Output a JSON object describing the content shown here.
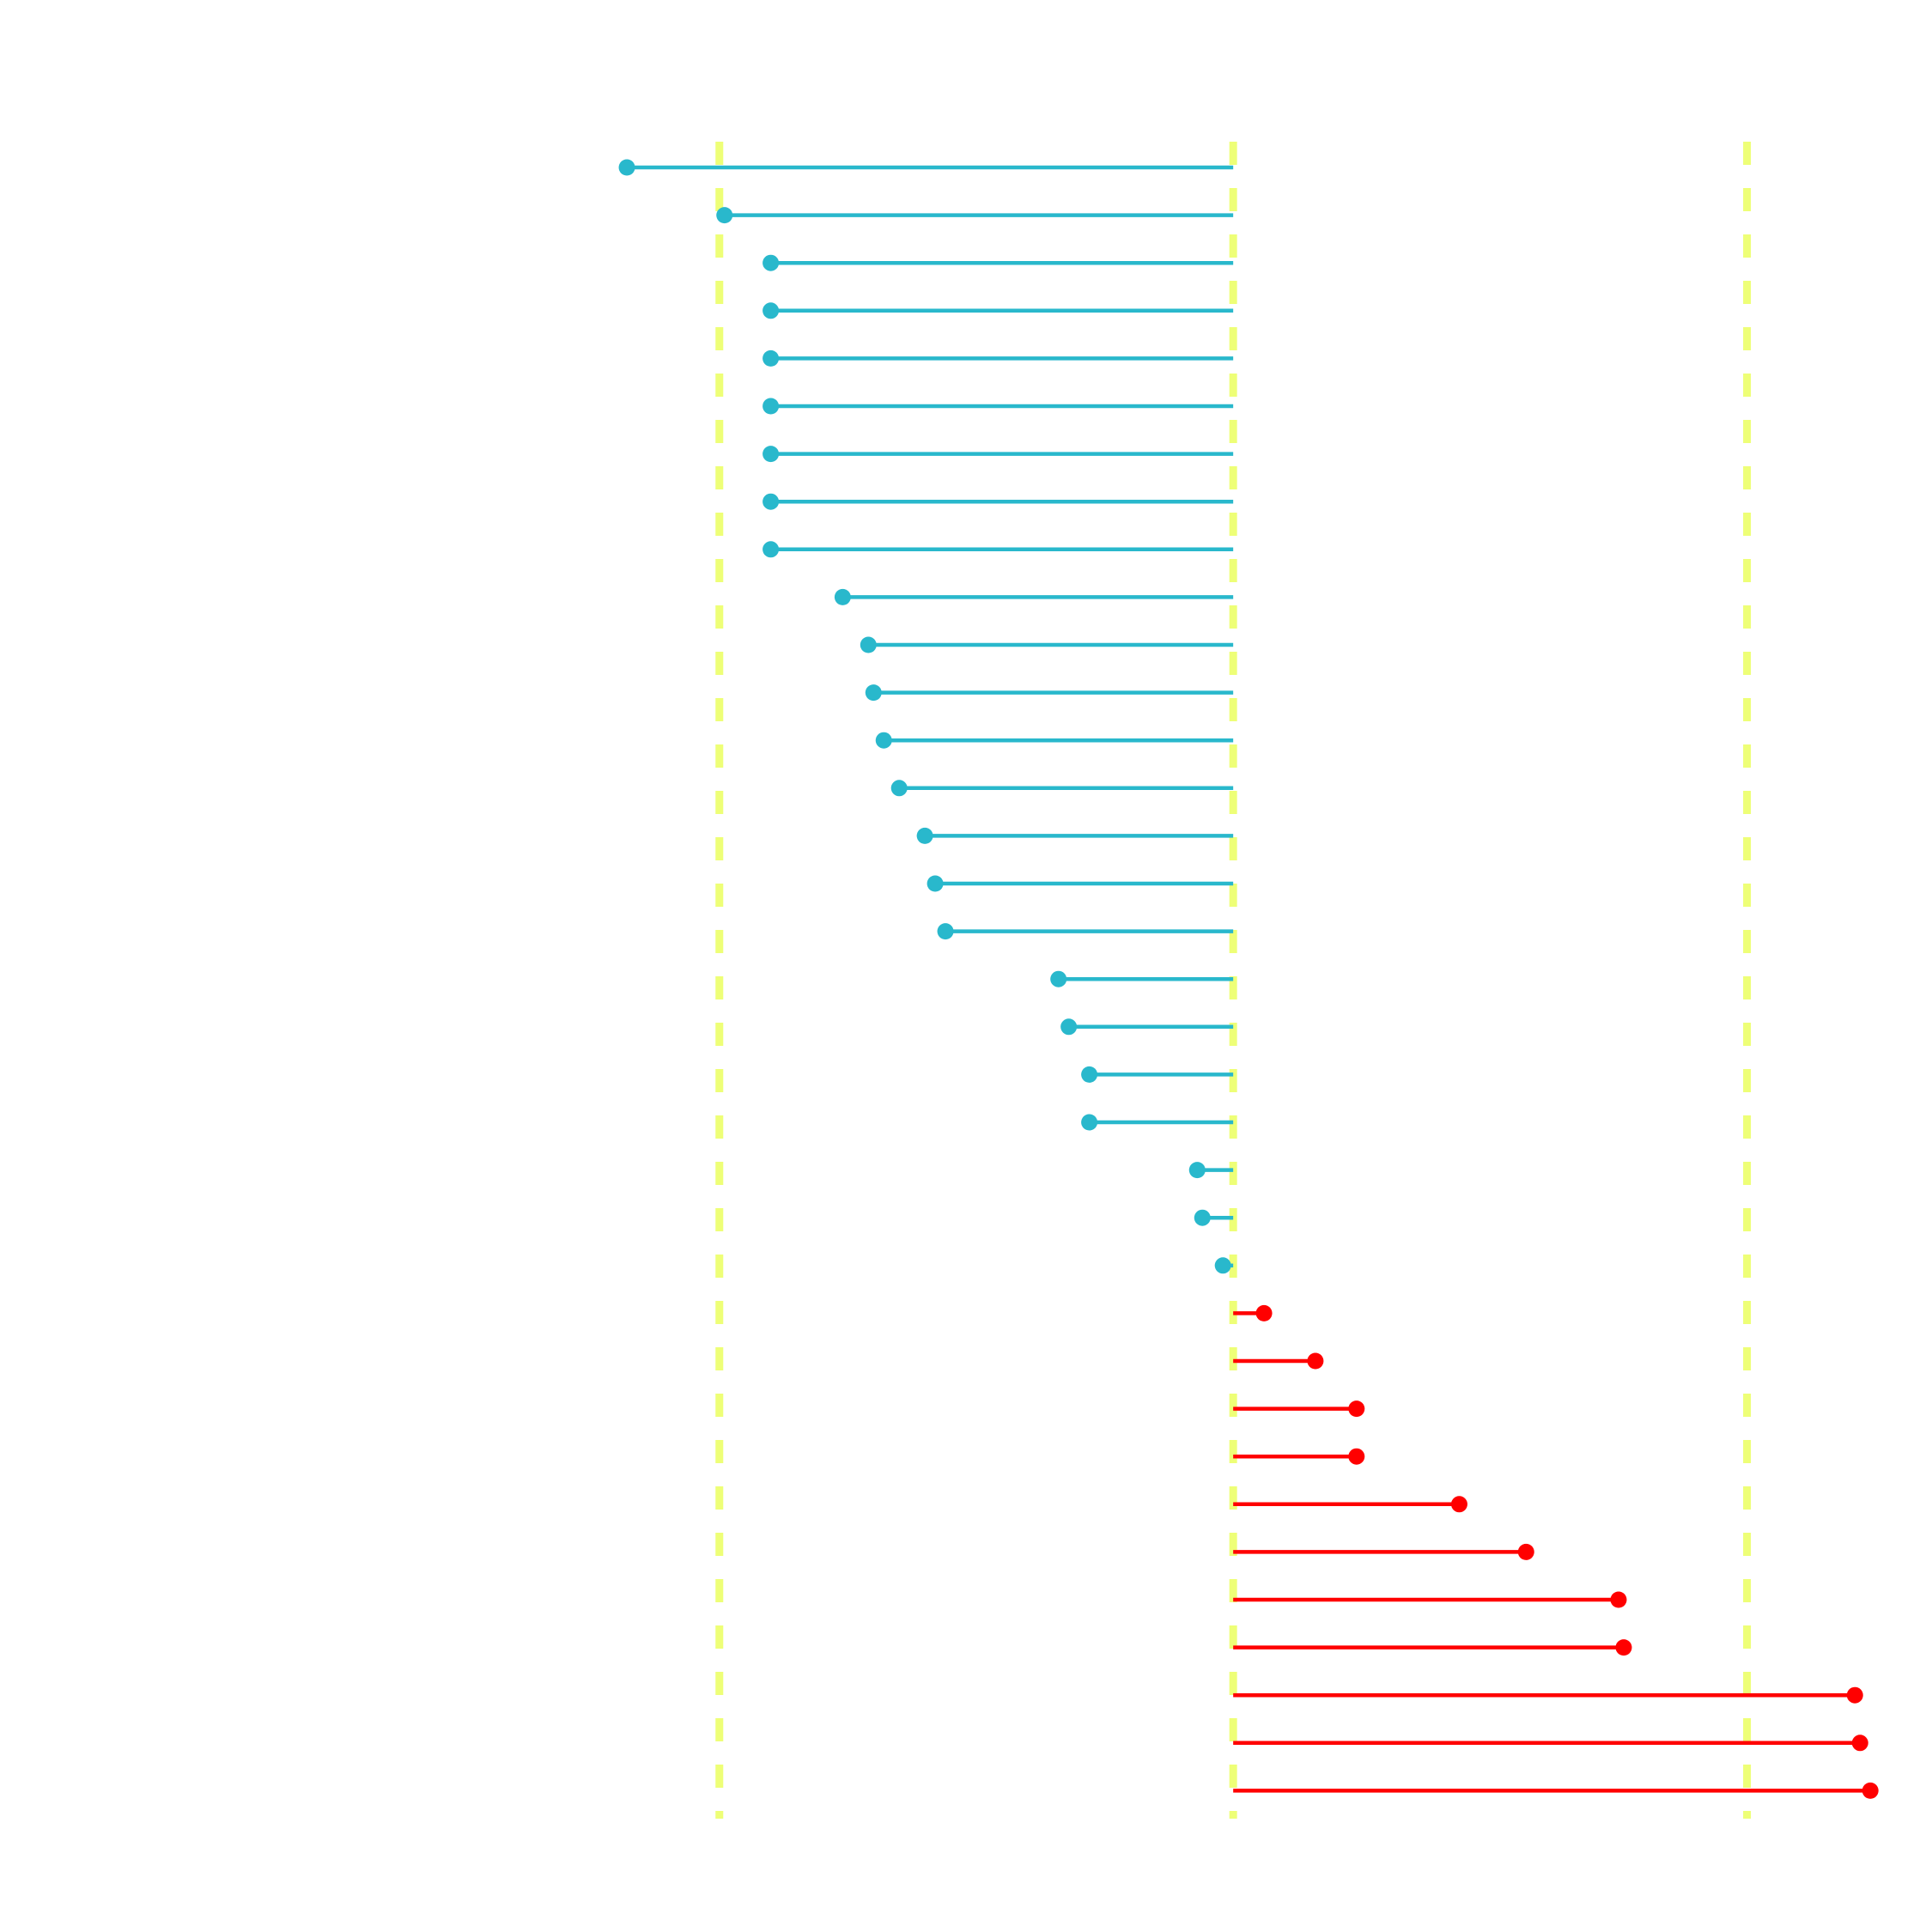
{
  "chart_data": {
    "type": "lollipop",
    "baseline": 0,
    "xlim": [
      -2.4,
      1.36
    ],
    "reference_lines": [
      -1,
      0,
      1
    ],
    "colors": {
      "negative": "#29B8CC",
      "positive": "#FF0000",
      "reference": "#EEFF77"
    },
    "grid": false,
    "legend": "none",
    "values": [
      -1.18,
      -0.99,
      -0.9,
      -0.9,
      -0.9,
      -0.9,
      -0.9,
      -0.9,
      -0.9,
      -0.76,
      -0.71,
      -0.7,
      -0.68,
      -0.65,
      -0.6,
      -0.58,
      -0.56,
      -0.34,
      -0.32,
      -0.28,
      -0.28,
      -0.07,
      -0.06,
      -0.02,
      0.06,
      0.16,
      0.24,
      0.24,
      0.44,
      0.57,
      0.75,
      0.76,
      1.21,
      1.22,
      1.24
    ]
  }
}
